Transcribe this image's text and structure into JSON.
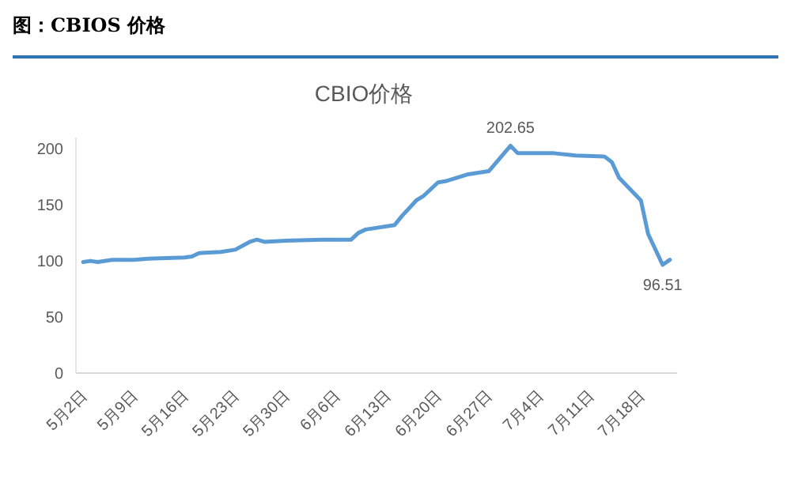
{
  "chart_data": {
    "type": "line",
    "title": "图：CBIOS 价格",
    "subtitle": "CBIO价格",
    "x": [
      "--05-02",
      "--05-03",
      "--05-04",
      "--05-06",
      "--05-09",
      "--05-11",
      "--05-16",
      "--05-17",
      "--05-18",
      "--05-21",
      "--05-23",
      "--05-25",
      "--05-26",
      "--05-27",
      "--05-30",
      "--06-04",
      "--06-08",
      "--06-09",
      "--06-10",
      "--06-14",
      "--06-15",
      "--06-17",
      "--06-18",
      "--06-20",
      "--06-21",
      "--06-24",
      "--06-27",
      "--06-30",
      "--07-01",
      "--07-06",
      "--07-09",
      "--07-13",
      "--07-14",
      "--07-15",
      "--07-18",
      "--07-19",
      "--07-21",
      "--07-22"
    ],
    "series": [
      {
        "color": "#5b9bd5",
        "values": [
          99,
          100,
          99,
          101,
          101,
          102,
          103,
          104,
          107,
          108,
          110,
          117,
          119,
          117,
          118,
          119,
          119,
          125,
          128,
          132,
          140,
          154,
          158,
          170,
          171,
          177,
          180,
          202.65,
          196,
          196,
          194,
          193,
          188,
          174,
          154,
          124,
          96.51,
          101
        ],
        "value_labels": [
          null,
          null,
          null,
          null,
          null,
          null,
          null,
          null,
          null,
          null,
          null,
          null,
          null,
          null,
          null,
          null,
          null,
          null,
          null,
          null,
          null,
          null,
          null,
          null,
          null,
          null,
          null,
          "202.65",
          null,
          null,
          null,
          null,
          null,
          null,
          null,
          null,
          "96.51",
          null
        ]
      }
    ],
    "xlim": [
      "--05-01",
      "--07-23"
    ],
    "xticks": [
      {
        "value": "--05-02",
        "label": "5月2日"
      },
      {
        "value": "--05-09",
        "label": "5月9日"
      },
      {
        "value": "--05-16",
        "label": "5月16日"
      },
      {
        "value": "--05-23",
        "label": "5月23日"
      },
      {
        "value": "--05-30",
        "label": "5月30日"
      },
      {
        "value": "--06-06",
        "label": "6月6日"
      },
      {
        "value": "--06-13",
        "label": "6月13日"
      },
      {
        "value": "--06-20",
        "label": "6月20日"
      },
      {
        "value": "--06-27",
        "label": "6月27日"
      },
      {
        "value": "--07-04",
        "label": "7月4日"
      },
      {
        "value": "--07-11",
        "label": "7月11日"
      },
      {
        "value": "--07-18",
        "label": "7月18日"
      }
    ],
    "ylim": [
      0,
      210
    ],
    "yticks": [
      0,
      50,
      100,
      150,
      200
    ],
    "grid": false,
    "legend": false,
    "marker": "none",
    "line_style": "solid"
  }
}
